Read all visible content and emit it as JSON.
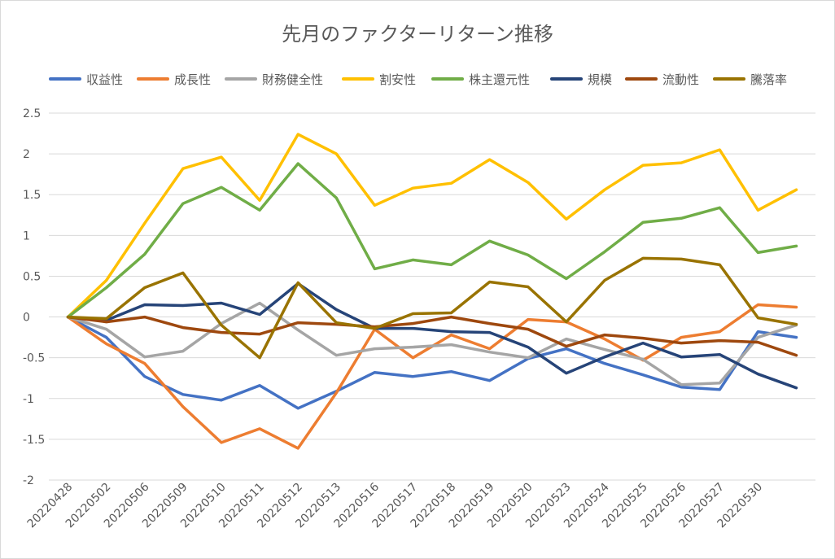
{
  "chart_data": {
    "type": "line",
    "title": "先月のファクターリターン推移",
    "xlabel": "",
    "ylabel": "",
    "ylim": [
      -2,
      2.5
    ],
    "yticks": [
      "2.5",
      "2",
      "1.5",
      "1",
      "0.5",
      "0",
      "-0.5",
      "-1",
      "-1.5",
      "-2"
    ],
    "grid": true,
    "legend_position": "top",
    "categories": [
      "20220428",
      "20220502",
      "20220506",
      "20220509",
      "20220510",
      "20220511",
      "20220512",
      "20220513",
      "20220516",
      "20220517",
      "20220518",
      "20220519",
      "20220520",
      "20220523",
      "20220524",
      "20220525",
      "20220526",
      "20220527",
      "20220530",
      ""
    ],
    "series": [
      {
        "name": "収益性",
        "color": "#4472c4",
        "values": [
          0,
          -0.25,
          -0.73,
          -0.95,
          -1.02,
          -0.84,
          -1.12,
          -0.91,
          -0.68,
          -0.73,
          -0.67,
          -0.78,
          -0.51,
          -0.39,
          -0.57,
          -0.71,
          -0.86,
          -0.89,
          -0.18,
          -0.25
        ]
      },
      {
        "name": "成長性",
        "color": "#ed7d31",
        "values": [
          0,
          -0.33,
          -0.57,
          -1.1,
          -1.54,
          -1.37,
          -1.61,
          -0.93,
          -0.15,
          -0.5,
          -0.22,
          -0.39,
          -0.03,
          -0.06,
          -0.27,
          -0.53,
          -0.25,
          -0.18,
          0.15,
          0.12
        ]
      },
      {
        "name": "財務健全性",
        "color": "#a5a5a5",
        "values": [
          0,
          -0.15,
          -0.49,
          -0.42,
          -0.08,
          0.17,
          -0.16,
          -0.47,
          -0.39,
          -0.37,
          -0.34,
          -0.43,
          -0.5,
          -0.27,
          -0.4,
          -0.52,
          -0.83,
          -0.81,
          -0.25,
          -0.1
        ]
      },
      {
        "name": "割安性",
        "color": "#ffc000",
        "values": [
          0,
          0.45,
          1.15,
          1.82,
          1.96,
          1.43,
          2.24,
          2.0,
          1.37,
          1.58,
          1.64,
          1.93,
          1.65,
          1.2,
          1.56,
          1.86,
          1.89,
          2.05,
          1.31,
          1.56
        ]
      },
      {
        "name": "株主還元性",
        "color": "#70ad47",
        "values": [
          0,
          0.36,
          0.77,
          1.39,
          1.59,
          1.31,
          1.88,
          1.46,
          0.59,
          0.7,
          0.64,
          0.93,
          0.76,
          0.47,
          0.8,
          1.16,
          1.21,
          1.34,
          0.79,
          0.87
        ]
      },
      {
        "name": "規模",
        "color": "#264478",
        "values": [
          0,
          -0.04,
          0.15,
          0.14,
          0.17,
          0.03,
          0.41,
          0.09,
          -0.14,
          -0.14,
          -0.18,
          -0.19,
          -0.37,
          -0.69,
          -0.49,
          -0.32,
          -0.49,
          -0.46,
          -0.7,
          -0.87
        ]
      },
      {
        "name": "流動性",
        "color": "#9e480e",
        "values": [
          0,
          -0.06,
          0.0,
          -0.13,
          -0.19,
          -0.21,
          -0.07,
          -0.09,
          -0.12,
          -0.08,
          0.0,
          -0.08,
          -0.15,
          -0.36,
          -0.22,
          -0.26,
          -0.32,
          -0.29,
          -0.31,
          -0.47
        ]
      },
      {
        "name": "騰落率",
        "color": "#997300",
        "values": [
          0,
          -0.02,
          0.36,
          0.54,
          -0.1,
          -0.5,
          0.42,
          -0.07,
          -0.14,
          0.04,
          0.05,
          0.43,
          0.37,
          -0.06,
          0.45,
          0.72,
          0.71,
          0.64,
          -0.01,
          -0.09
        ]
      }
    ],
    "colors": {
      "grid": "#d9d9d9",
      "text": "#595959"
    }
  }
}
